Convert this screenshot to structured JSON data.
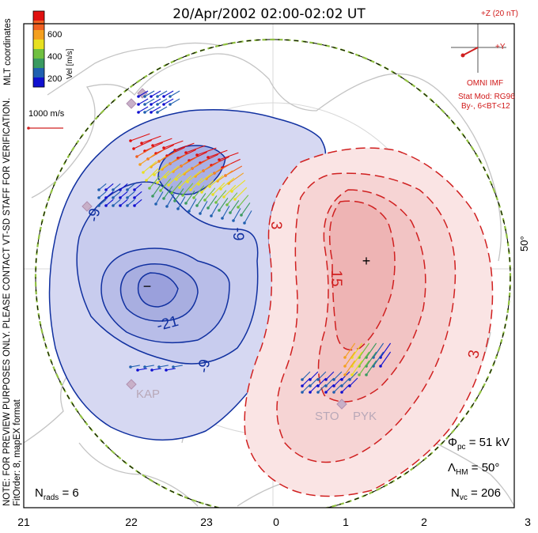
{
  "title": "20/Apr/2002 02:00-02:02 UT",
  "mlt_labels": [
    "21",
    "22",
    "23",
    "0",
    "1",
    "2",
    "3"
  ],
  "lat_label": "50°",
  "colorbar": {
    "ticks": [
      "600",
      "400",
      "200"
    ],
    "label": "Vel [m/s]",
    "colors": [
      "#e01010",
      "#f06020",
      "#f4a020",
      "#e8e020",
      "#70c040",
      "#3a9a60",
      "#2060b0",
      "#1010d0"
    ]
  },
  "coords_label": "MLT coordinates",
  "vector_scale": "1000 m/s",
  "imf": {
    "bz_label": "+Z (20 nT)",
    "by_label": "+Y",
    "source": "OMNI IMF",
    "model_line1": "Stat Mod: RG96",
    "model_line2": "By-, 6<BT<12"
  },
  "note": "NOTE: FOR PREVIEW PURPOSES ONLY. PLEASE CONTACT VT-SD STAFF FOR VERIFICATION.",
  "fit_order": "FitOrder: 8, mapEX format",
  "stats": {
    "phi_symbol": "Φ",
    "phi_sub": "pc",
    "phi_value": "= 51 kV",
    "lambda_symbol": "Λ",
    "lambda_sub": "HM",
    "lambda_value": "= 50°",
    "nvc_symbol": "N",
    "nvc_sub": "vc",
    "nvc_value": "= 206",
    "nrads_symbol": "N",
    "nrads_sub": "rads",
    "nrads_value": "= 6"
  },
  "contour_labels": [
    "-9",
    "-9",
    "-21",
    "-9",
    "3",
    "15",
    "3"
  ],
  "extrema": {
    "min": "−",
    "max": "+"
  },
  "sites": [
    "KAP",
    "STO",
    "PYK"
  ],
  "colors": {
    "positive": "#d02020",
    "negative": "#1030a0",
    "neg_fill": "#c8ccee",
    "pos_fill": "#f8d8d8",
    "land": "#c0c0c0",
    "hm_boundary": "#90c040"
  }
}
